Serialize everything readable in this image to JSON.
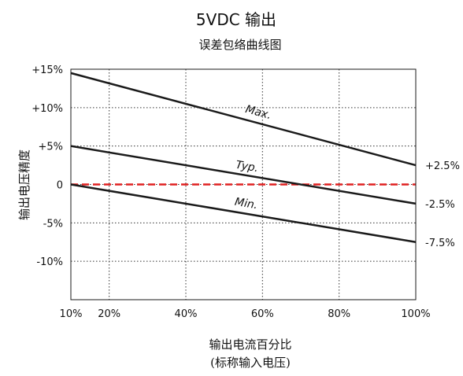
{
  "chart_data": {
    "type": "line",
    "title": "5VDC 输出",
    "subtitle": "误差包络曲线图",
    "xlabel": "输出电流百分比",
    "xlabel_sub": "(标称输入电压)",
    "ylabel": "输出电压精度",
    "xlim": [
      10,
      100
    ],
    "ylim": [
      -15,
      15
    ],
    "x_ticks": [
      10,
      20,
      40,
      60,
      80,
      100
    ],
    "x_tick_labels": [
      "10%",
      "20%",
      "40%",
      "60%",
      "80%",
      "100%"
    ],
    "y_ticks": [
      15,
      10,
      5,
      0,
      -5,
      -10
    ],
    "y_tick_labels": [
      "+15%",
      "+10%",
      "+5%",
      "0",
      "-5%",
      "-10%"
    ],
    "grid": true,
    "series": [
      {
        "name": "Max.",
        "x": [
          10,
          100
        ],
        "y": [
          14.5,
          2.5
        ],
        "color": "#1a1a1a",
        "end_label": "+2.5%"
      },
      {
        "name": "Typ.",
        "x": [
          10,
          100
        ],
        "y": [
          5,
          -2.5
        ],
        "color": "#1a1a1a",
        "end_label": "-2.5%"
      },
      {
        "name": "Min.",
        "x": [
          10,
          100
        ],
        "y": [
          0,
          -7.5
        ],
        "color": "#1a1a1a",
        "end_label": "-7.5%"
      }
    ],
    "reference_line": {
      "y": 0,
      "color": "#e02020",
      "style": "dashed"
    }
  }
}
